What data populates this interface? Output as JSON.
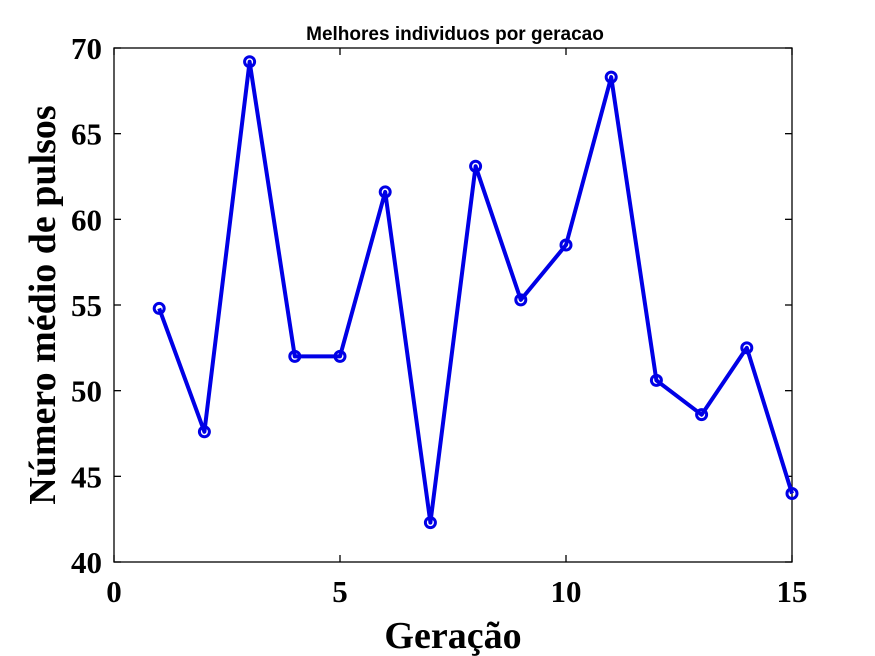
{
  "chart_data": {
    "type": "line",
    "title": "Melhores individuos por geracao",
    "xlabel": "Geração",
    "ylabel": "Número médio de pulsos",
    "xlim": [
      0,
      15
    ],
    "ylim": [
      40,
      70
    ],
    "xticks": [
      "0",
      "5",
      "10",
      "15"
    ],
    "yticks": [
      "40",
      "45",
      "50",
      "55",
      "60",
      "65",
      "70"
    ],
    "grid": false,
    "legend": "none",
    "marker": "circle",
    "color": "#0000e6",
    "x": [
      1,
      2,
      3,
      4,
      5,
      6,
      7,
      8,
      9,
      10,
      11,
      12,
      13,
      14,
      15
    ],
    "series": [
      {
        "values": [
          54.8,
          47.6,
          69.2,
          52.0,
          52.0,
          61.6,
          42.3,
          63.1,
          55.3,
          58.5,
          68.3,
          50.6,
          48.6,
          52.5,
          44.0
        ]
      }
    ]
  }
}
